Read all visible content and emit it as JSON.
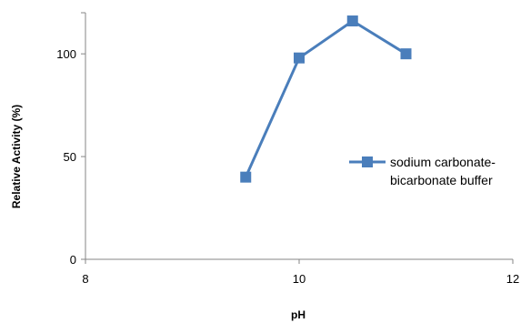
{
  "chart_data": {
    "type": "line",
    "xlabel": "pH",
    "ylabel": "Relative Activity (%)",
    "xlim": [
      8,
      12
    ],
    "ylim": [
      0,
      120
    ],
    "xticks": [
      8,
      10,
      12
    ],
    "yticks": [
      0,
      50,
      100
    ],
    "grid": false,
    "legend_position": "right",
    "series": [
      {
        "name_lines": [
          "sodium carbonate-",
          "bicarbonate buffer"
        ],
        "color": "#4a7ebb",
        "marker": "square",
        "x": [
          9.5,
          10,
          10.5,
          11
        ],
        "y": [
          40,
          98,
          116,
          100
        ]
      }
    ]
  }
}
